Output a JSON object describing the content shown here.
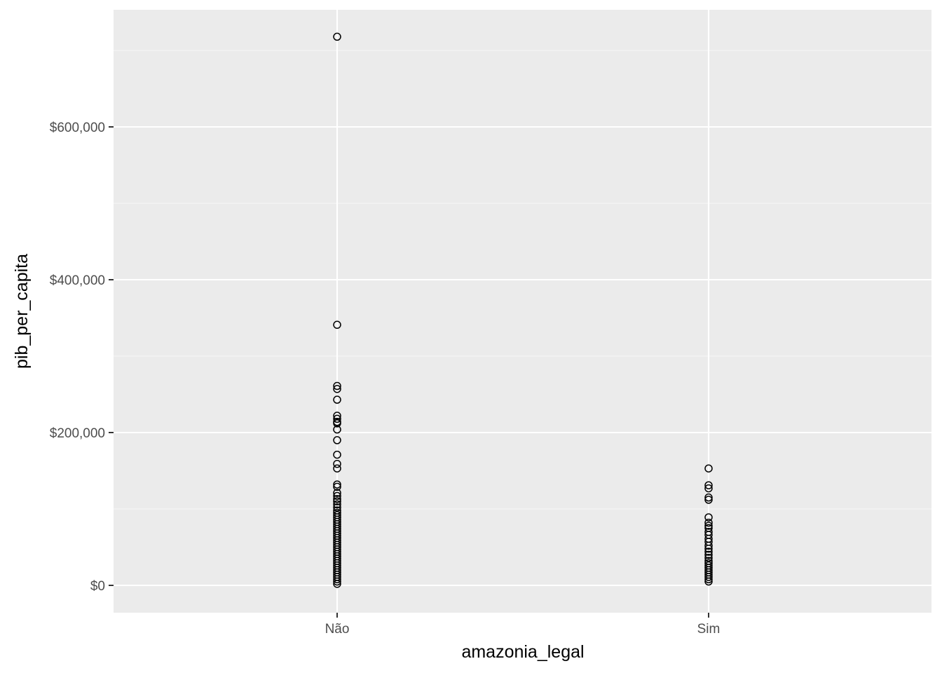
{
  "chart_data": {
    "type": "scatter",
    "xlabel": "amazonia_legal",
    "ylabel": "pib_per_capita",
    "categories": [
      "Não",
      "Sim"
    ],
    "ylim": [
      -35000,
      752000
    ],
    "y_ticks": [
      0,
      200000,
      400000,
      600000
    ],
    "y_tick_labels": [
      "$0",
      "$200,000",
      "$400,000",
      "$600,000"
    ],
    "grid": true,
    "series": [
      {
        "category": "Não",
        "values": [
          718000,
          341000,
          261000,
          257000,
          243000,
          222000,
          218000,
          214000,
          212000,
          204000,
          190000,
          171000,
          159000,
          153000,
          132000,
          129000,
          121000,
          117000,
          113000,
          110000,
          106000,
          102000,
          98000,
          95000,
          92000,
          89000,
          86000,
          83000,
          80000,
          77000,
          74000,
          71000,
          68000,
          65000,
          62000,
          59000,
          56000,
          53000,
          50000,
          47000,
          44000,
          41000,
          38000,
          35000,
          32000,
          29000,
          26000,
          23000,
          20000,
          17000,
          14000,
          11000,
          8000,
          5000,
          2000
        ]
      },
      {
        "category": "Sim",
        "values": [
          153000,
          131000,
          127000,
          115000,
          112000,
          89000,
          82000,
          78000,
          75000,
          70000,
          66000,
          61000,
          57000,
          52000,
          48000,
          44000,
          40000,
          36000,
          32000,
          29000,
          26000,
          23000,
          20000,
          17000,
          14000,
          11000,
          8000,
          5000
        ]
      }
    ],
    "colors": {
      "panel_background": "#ebebeb",
      "grid_major": "#ffffff",
      "grid_minor": "#f7f7f7",
      "point_stroke": "#000000",
      "tick_mark": "#333333"
    }
  }
}
